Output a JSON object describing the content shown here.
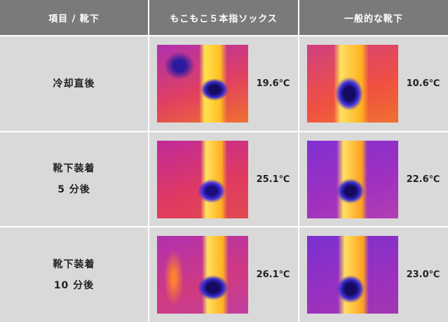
{
  "table": {
    "header": [
      "項目 / 靴下",
      "もこもこ５本指ソックス",
      "一般的な靴下"
    ],
    "rows": [
      {
        "label": [
          "冷却直後"
        ],
        "values": [
          "19.6℃",
          "10.6℃"
        ]
      },
      {
        "label": [
          "靴下装着",
          "5 分後"
        ],
        "values": [
          "25.1℃",
          "22.6℃"
        ]
      },
      {
        "label": [
          "靴下装着",
          "10 分後"
        ],
        "values": [
          "26.1℃",
          "23.0℃"
        ]
      }
    ]
  }
}
